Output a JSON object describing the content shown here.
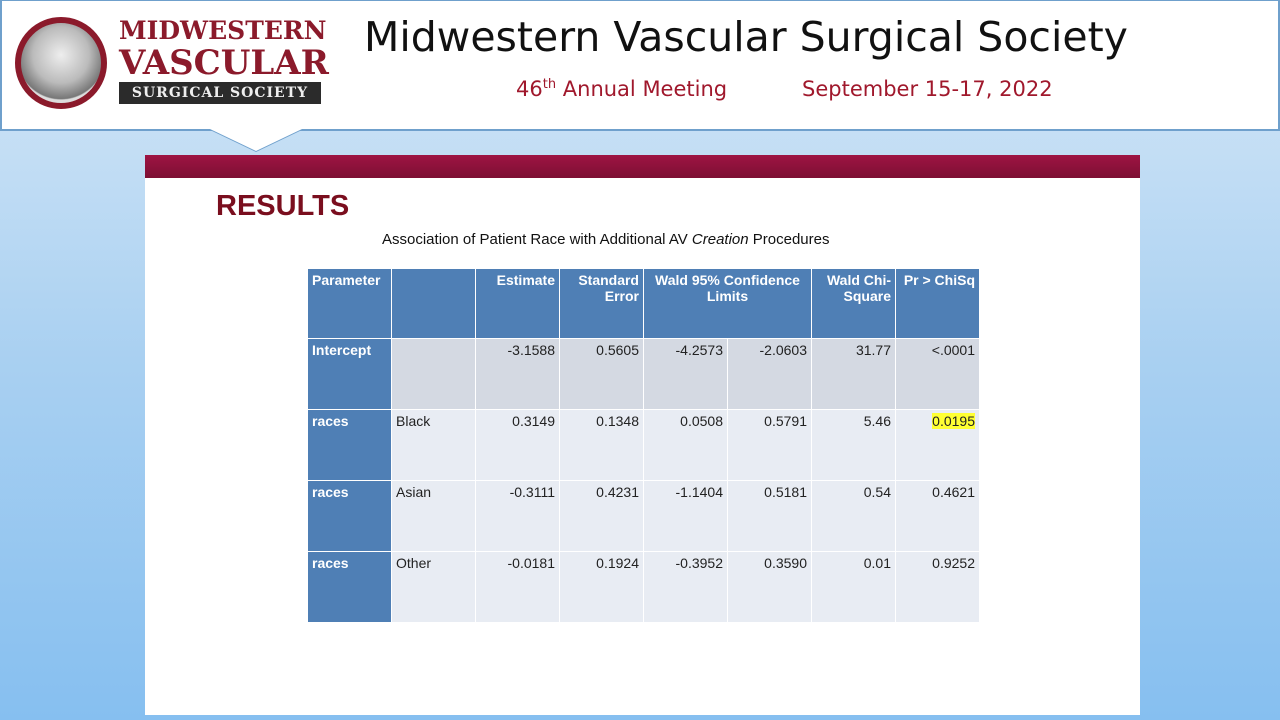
{
  "header": {
    "logo": {
      "line1": "MIDWESTERN",
      "line2": "VASCULAR",
      "line3": "SURGICAL SOCIETY"
    },
    "title": "Midwestern Vascular Surgical Society",
    "meeting_num": "46",
    "meeting_sup": "th",
    "meeting_text": "Annual Meeting",
    "dates": "September 15-17, 2022"
  },
  "slide": {
    "heading": "RESULTS",
    "caption_pre": "Association of Patient Race with Additional AV ",
    "caption_em": "Creation",
    "caption_post": " Procedures",
    "table": {
      "headers": [
        "Parameter",
        "",
        "Estimate",
        "Standard Error",
        "Wald 95% Confidence Limits",
        "Wald Chi-Square",
        "Pr > ChiSq"
      ],
      "rows": [
        [
          "Intercept",
          "",
          "-3.1588",
          "0.5605",
          "-4.2573",
          "-2.0603",
          "31.77",
          "<.0001"
        ],
        [
          "races",
          "Black",
          "0.3149",
          "0.1348",
          "0.0508",
          "0.5791",
          "5.46",
          "0.0195"
        ],
        [
          "races",
          "Asian",
          "-0.3111",
          "0.4231",
          "-1.1404",
          "0.5181",
          "0.54",
          "0.4621"
        ],
        [
          "races",
          "Other",
          "-0.0181",
          "0.1924",
          "-0.3952",
          "0.3590",
          "0.01",
          "0.9252"
        ]
      ],
      "highlight_color": "#ffff33"
    }
  },
  "colors": {
    "accent": "#8b1a2b",
    "header_blue": "#4f7fb5"
  }
}
